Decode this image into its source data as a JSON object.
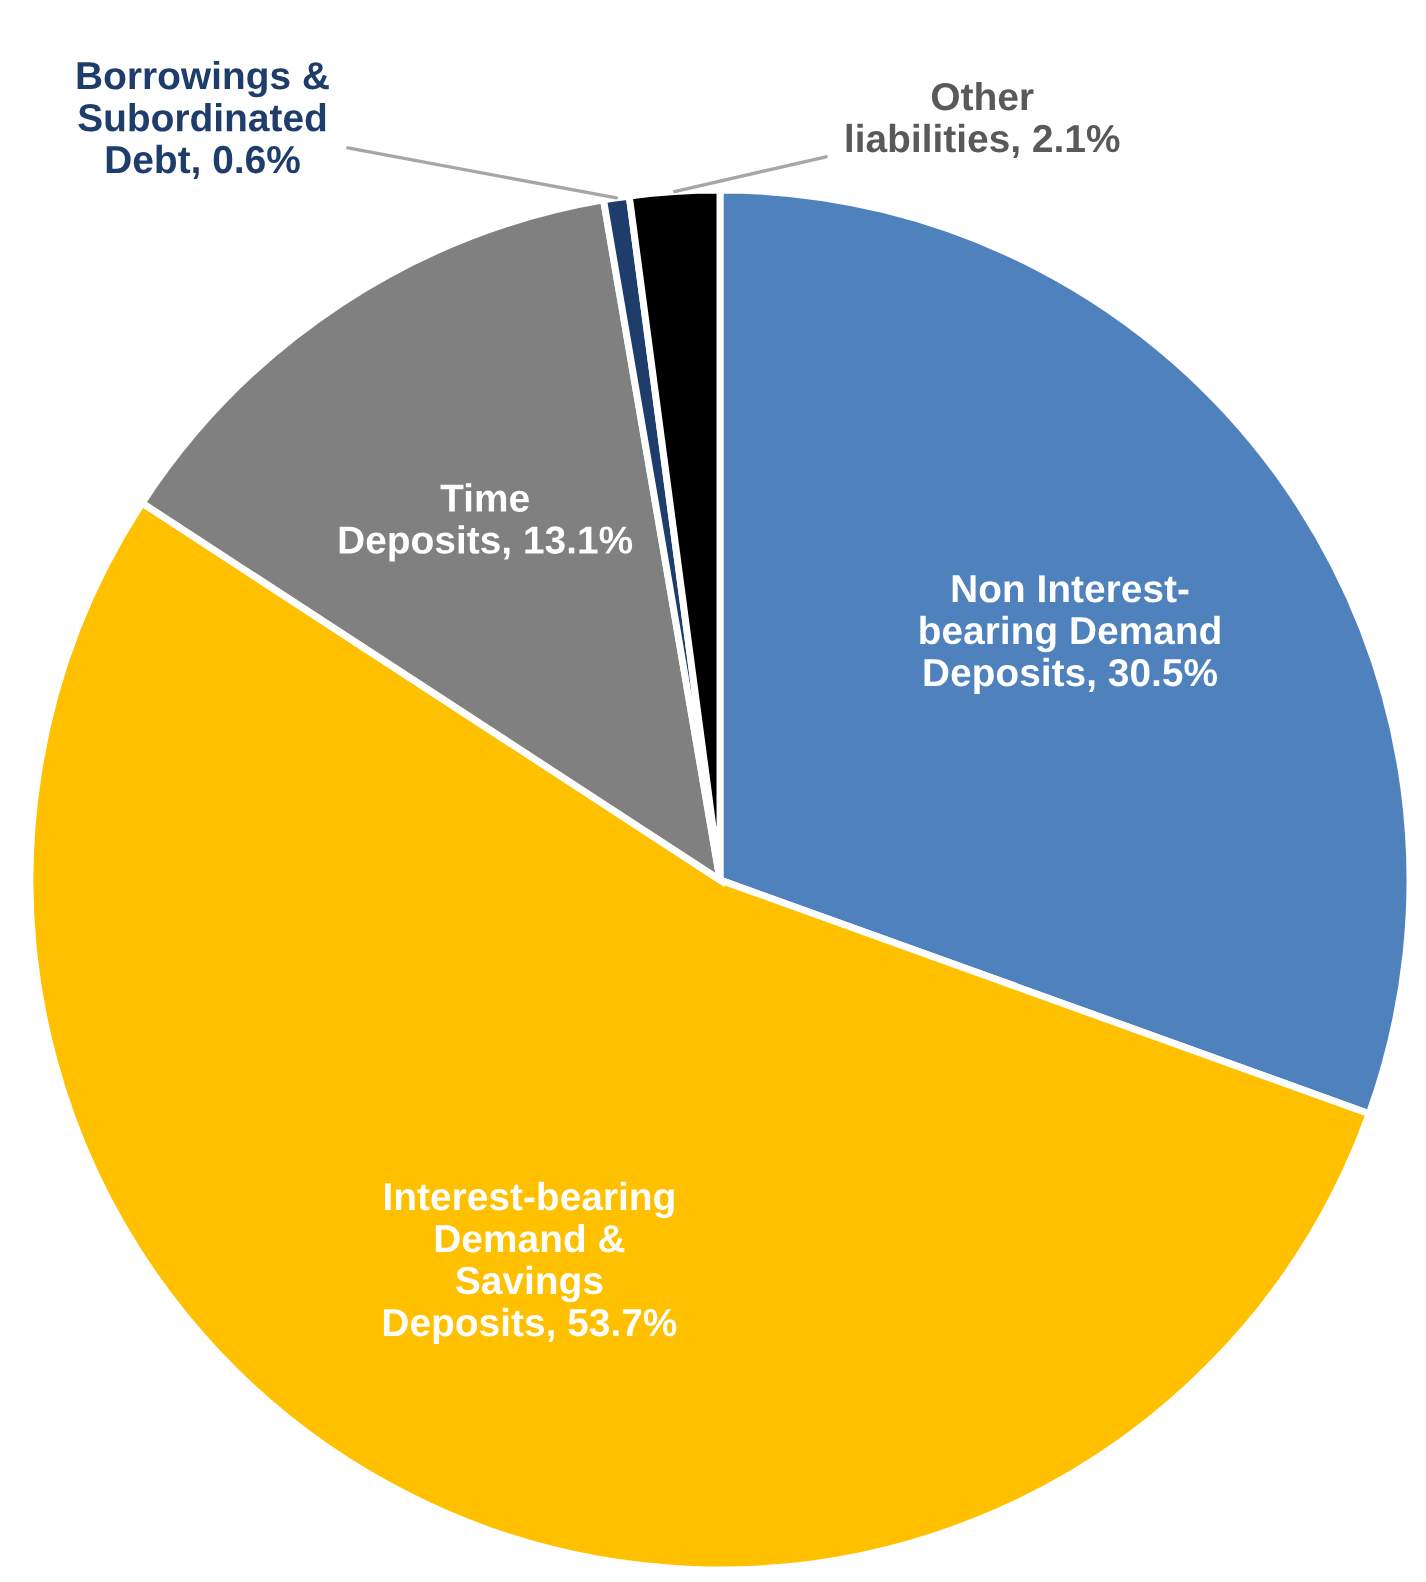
{
  "chart_data": {
    "type": "pie",
    "categories": [
      "Non Interest-\nbearing Demand\nDeposits",
      "Interest-bearing\nDemand &\nSavings\nDeposits",
      "Time\nDeposits",
      "Borrowings &\nSubordinated\nDebt",
      "Other\nliabilities"
    ],
    "values": [
      30.5,
      53.7,
      13.1,
      0.6,
      2.1
    ],
    "value_labels": [
      "30.5%",
      "53.7%",
      "13.1%",
      "0.6%",
      "2.1%"
    ],
    "colors": [
      "#4f81bd",
      "#ffc000",
      "#808080",
      "#1f3d6b",
      "#000000"
    ],
    "legend": false
  }
}
